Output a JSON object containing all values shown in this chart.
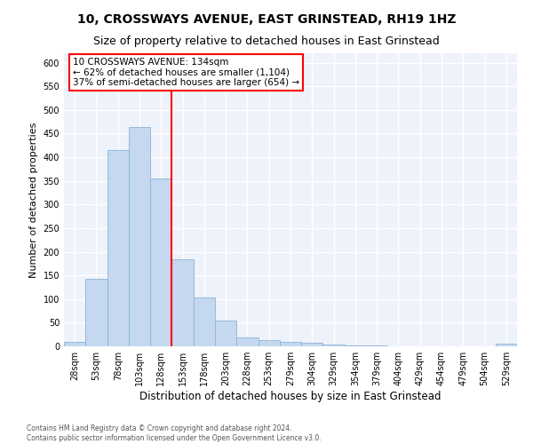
{
  "title": "10, CROSSWAYS AVENUE, EAST GRINSTEAD, RH19 1HZ",
  "subtitle": "Size of property relative to detached houses in East Grinstead",
  "xlabel": "Distribution of detached houses by size in East Grinstead",
  "ylabel": "Number of detached properties",
  "bar_color": "#c5d8f0",
  "bar_edge_color": "#8ab4d8",
  "background_color": "#eef2fa",
  "grid_color": "#ffffff",
  "categories": [
    "28sqm",
    "53sqm",
    "78sqm",
    "103sqm",
    "128sqm",
    "153sqm",
    "178sqm",
    "203sqm",
    "228sqm",
    "253sqm",
    "279sqm",
    "304sqm",
    "329sqm",
    "354sqm",
    "379sqm",
    "404sqm",
    "429sqm",
    "454sqm",
    "479sqm",
    "504sqm",
    "529sqm"
  ],
  "values": [
    10,
    143,
    415,
    465,
    355,
    185,
    103,
    55,
    18,
    13,
    10,
    8,
    3,
    1,
    1,
    0,
    0,
    0,
    0,
    0,
    5
  ],
  "ylim": [
    0,
    620
  ],
  "yticks": [
    0,
    50,
    100,
    150,
    200,
    250,
    300,
    350,
    400,
    450,
    500,
    550,
    600
  ],
  "redline_x": 4.48,
  "annotation_text": "10 CROSSWAYS AVENUE: 134sqm\n← 62% of detached houses are smaller (1,104)\n37% of semi-detached houses are larger (654) →",
  "footnote": "Contains HM Land Registry data © Crown copyright and database right 2024.\nContains public sector information licensed under the Open Government Licence v3.0.",
  "title_fontsize": 10,
  "subtitle_fontsize": 9,
  "xlabel_fontsize": 8.5,
  "ylabel_fontsize": 8,
  "tick_fontsize": 7,
  "annot_fontsize": 7.5,
  "footnote_fontsize": 5.5
}
